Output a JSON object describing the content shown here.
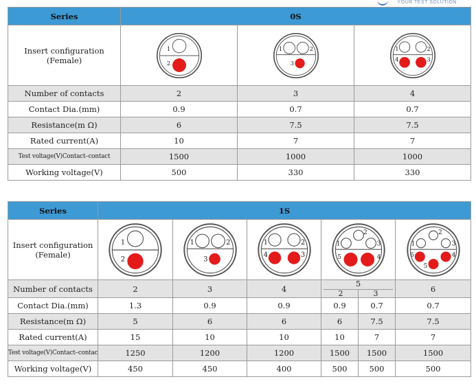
{
  "branding": {
    "tagline": "YOUR TEST SOLUTION"
  },
  "table_0s": {
    "series_label": "Series",
    "series_name": "0S",
    "insert_label": "Insert configuration\n(Female)",
    "connectors": [
      {
        "pins": [
          "1",
          "2"
        ]
      },
      {
        "pins": [
          "1",
          "2",
          "3"
        ]
      },
      {
        "pins": [
          "1",
          "2",
          "3",
          "4"
        ]
      }
    ],
    "rows": [
      {
        "label": "Number of contacts",
        "values": [
          "2",
          "3",
          "4"
        ]
      },
      {
        "label": "Contact Dia.(mm)",
        "values": [
          "0.9",
          "0.7",
          "0.7"
        ]
      },
      {
        "label": "Resistance(m Ω)",
        "values": [
          "6",
          "7.5",
          "7.5"
        ]
      },
      {
        "label": "Rated current(A)",
        "values": [
          "10",
          "7",
          "7"
        ]
      },
      {
        "label": "Test voltage(V)Contact–contact",
        "values": [
          "1500",
          "1000",
          "1000"
        ]
      },
      {
        "label": "Working voltage(V)",
        "values": [
          "500",
          "330",
          "330"
        ]
      }
    ]
  },
  "table_1s": {
    "series_label": "Series",
    "series_name": "1S",
    "insert_label": "Insert configuration\n(Female)",
    "connectors": [
      {
        "pins": [
          "1",
          "2"
        ]
      },
      {
        "pins": [
          "1",
          "2",
          "3"
        ]
      },
      {
        "pins": [
          "1",
          "2",
          "3",
          "4"
        ]
      },
      {
        "pins": [
          "1",
          "2",
          "3",
          "4",
          "5"
        ]
      },
      {
        "pins": [
          "1",
          "2",
          "3",
          "4",
          "5",
          "6"
        ]
      }
    ],
    "contacts": {
      "label": "Number of contacts",
      "c1": "2",
      "c2": "3",
      "c3": "4",
      "c4": "5",
      "c4a": "2",
      "c4b": "3",
      "c5": "6"
    },
    "rows": [
      {
        "label": "Contact Dia.(mm)",
        "values": [
          "1.3",
          "0.9",
          "0.9",
          "0.9",
          "0.7",
          "0.7"
        ]
      },
      {
        "label": "Resistance(m Ω)",
        "values": [
          "5",
          "6",
          "6",
          "6",
          "7.5",
          "7.5"
        ]
      },
      {
        "label": "Rated current(A)",
        "values": [
          "15",
          "10",
          "10",
          "10",
          "7",
          "7"
        ]
      },
      {
        "label": "Test voltage(V)Contact–contact",
        "values": [
          "1250",
          "1200",
          "1200",
          "1500",
          "1500",
          "1500"
        ]
      },
      {
        "label": "Working voltage(V)",
        "values": [
          "450",
          "450",
          "400",
          "500",
          "500",
          "500"
        ]
      }
    ]
  },
  "colors": {
    "header": "#3d9ad5",
    "shade": "#e3e3e3",
    "pin_red": "#e31b1b",
    "border": "#9a9a9a"
  }
}
